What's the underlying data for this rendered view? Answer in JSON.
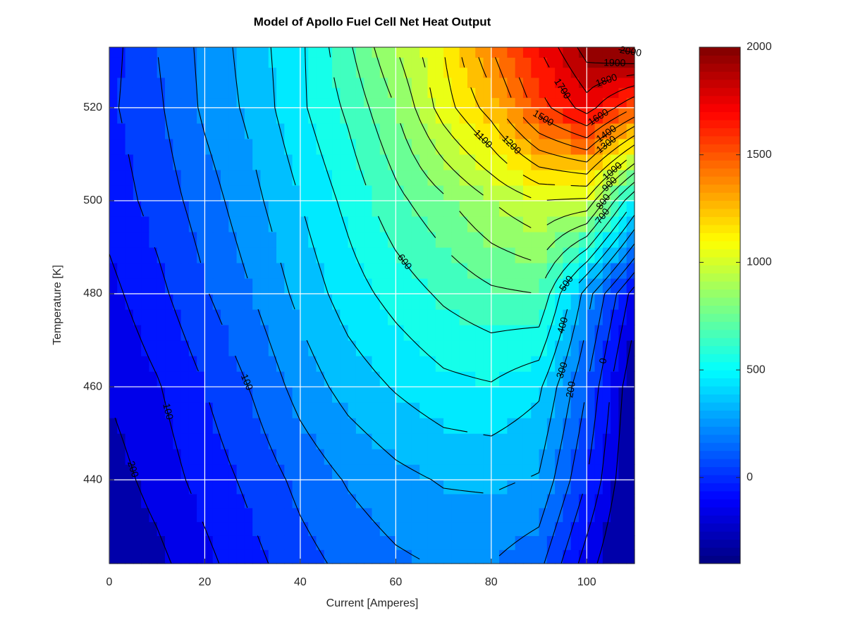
{
  "chart_data": {
    "type": "contour",
    "title": "Model of Apollo Fuel Cell Net Heat Output",
    "xlabel": "Current [Amperes]",
    "ylabel": "Temperature [K]",
    "x": [
      0,
      10,
      20,
      30,
      40,
      50,
      60,
      70,
      80,
      90,
      100,
      110
    ],
    "y": [
      422,
      440,
      460,
      480,
      500,
      520,
      533
    ],
    "z": [
      [
        -300,
        -230,
        -130,
        -30,
        60,
        130,
        180,
        210,
        200,
        130,
        -150,
        -380
      ],
      [
        -250,
        -160,
        -60,
        30,
        130,
        210,
        270,
        310,
        320,
        290,
        0,
        -330
      ],
      [
        -190,
        -110,
        0,
        110,
        240,
        340,
        410,
        470,
        490,
        420,
        100,
        -300
      ],
      [
        -130,
        -30,
        90,
        200,
        330,
        450,
        540,
        620,
        680,
        700,
        250,
        -150
      ],
      [
        -60,
        40,
        150,
        270,
        400,
        530,
        670,
        780,
        900,
        1000,
        980,
        500
      ],
      [
        -20,
        80,
        220,
        330,
        480,
        620,
        800,
        1050,
        1250,
        1550,
        1750,
        1500
      ],
      [
        -40,
        100,
        230,
        350,
        480,
        680,
        900,
        1100,
        1400,
        1700,
        1950,
        2050
      ]
    ],
    "levels": [
      -200,
      -100,
      0,
      100,
      200,
      300,
      400,
      500,
      600,
      700,
      800,
      900,
      1000,
      1100,
      1200,
      1300,
      1400,
      1500,
      1600,
      1700,
      1800,
      1900,
      2000
    ],
    "xlim": [
      0,
      110
    ],
    "ylim": [
      422,
      533
    ],
    "xticks": [
      0,
      20,
      40,
      60,
      80,
      100
    ],
    "yticks": [
      440,
      460,
      480,
      500,
      520
    ],
    "colormap": "jet",
    "clim": [
      -400,
      2000
    ],
    "cticks": [
      0,
      500,
      1000,
      1500,
      2000
    ],
    "grid": true,
    "grid_color": "#ffffff",
    "line_color": "#000000"
  }
}
